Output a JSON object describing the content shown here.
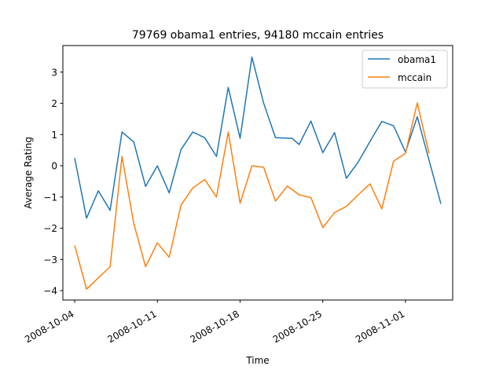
{
  "chart_data": {
    "type": "line",
    "title": "79769 obama1 entries, 94180 mccain entries",
    "xlabel": "Time",
    "ylabel": "Average Rating",
    "x_tick_labels": [
      "2008-10-04",
      "2008-10-11",
      "2008-10-18",
      "2008-10-25",
      "2008-11-01"
    ],
    "y_ticks": [
      -4,
      -3,
      -2,
      -1,
      0,
      1,
      2,
      3
    ],
    "ylim": [
      -4.3,
      3.85
    ],
    "xlim": [
      "2008-10-03",
      "2008-11-05"
    ],
    "legend_position": "upper-right",
    "grid": false,
    "x": [
      "2008-10-04",
      "2008-10-05",
      "2008-10-06",
      "2008-10-07",
      "2008-10-08",
      "2008-10-09",
      "2008-10-10",
      "2008-10-11",
      "2008-10-12",
      "2008-10-13",
      "2008-10-14",
      "2008-10-15",
      "2008-10-16",
      "2008-10-17",
      "2008-10-18",
      "2008-10-19",
      "2008-10-20",
      "2008-10-21",
      "2008-10-22",
      "2008-10-23",
      "2008-10-24",
      "2008-10-25",
      "2008-10-26",
      "2008-10-27",
      "2008-10-28",
      "2008-10-29",
      "2008-10-30",
      "2008-10-31",
      "2008-11-01",
      "2008-11-02",
      "2008-11-03",
      "2008-11-04"
    ],
    "series": [
      {
        "name": "obama1",
        "color": "#1f77b4",
        "values": [
          0.25,
          -1.68,
          -0.8,
          -1.43,
          1.08,
          0.76,
          -0.66,
          0.0,
          -0.87,
          0.52,
          1.08,
          0.9,
          0.3,
          2.51,
          0.88,
          3.48,
          2.0,
          0.9,
          null,
          0.68,
          1.43,
          0.42,
          1.06,
          -0.4,
          0.12,
          0.78,
          1.42,
          1.28,
          0.44,
          1.57,
          null,
          -1.22
        ],
        "notes_points": [
          [
            18.4,
            0.88
          ]
        ]
      },
      {
        "name": "mccain",
        "color": "#ff7f0e",
        "values": [
          -2.55,
          -3.95,
          null,
          -3.23,
          0.3,
          -1.85,
          -3.23,
          -2.47,
          -2.93,
          -1.26,
          -0.71,
          -0.44,
          -1.0,
          1.08,
          -1.2,
          0.0,
          -0.05,
          -1.13,
          -0.65,
          -0.93,
          -1.02,
          -1.98,
          -1.5,
          -1.3,
          -0.93,
          -0.58,
          -1.38,
          0.15,
          0.4,
          2.01,
          0.4,
          null
        ]
      }
    ]
  }
}
